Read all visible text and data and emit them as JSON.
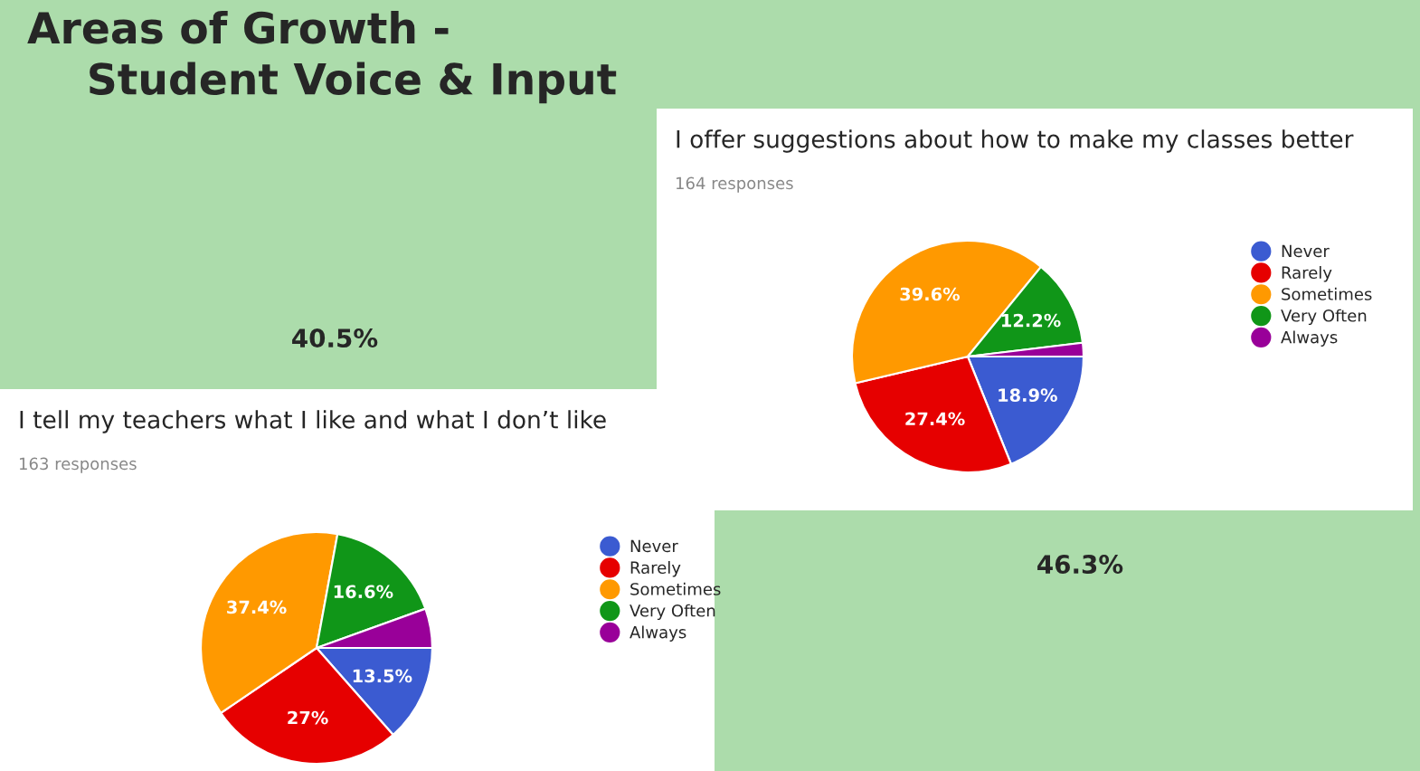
{
  "chart_data": [
    {
      "type": "other",
      "title": "Areas of Growth -\n    Student Voice & Input",
      "annotations": [
        "40.5%",
        "46.3%"
      ]
    },
    {
      "type": "pie",
      "title": "I offer suggestions about how to make my classes better",
      "subtitle": "164 responses",
      "categories": [
        "Never",
        "Rarely",
        "Sometimes",
        "Very Often",
        "Always"
      ],
      "values": [
        18.9,
        27.4,
        39.6,
        12.2,
        1.9
      ],
      "colors": [
        "#3b5bd1",
        "#e60000",
        "#ff9900",
        "#109618",
        "#990099"
      ],
      "value_labels": [
        "18.9%",
        "27.4%",
        "39.6%",
        "12.2%",
        null
      ],
      "legend": "right"
    },
    {
      "type": "pie",
      "title": "I tell my teachers what I like and what I don’t like",
      "subtitle": "163 responses",
      "categories": [
        "Never",
        "Rarely",
        "Sometimes",
        "Very Often",
        "Always"
      ],
      "values": [
        13.5,
        27,
        37.4,
        16.6,
        5.5
      ],
      "colors": [
        "#3b5bd1",
        "#e60000",
        "#ff9900",
        "#109618",
        "#990099"
      ],
      "value_labels": [
        "13.5%",
        "27%",
        "37.4%",
        "16.6%",
        null
      ],
      "legend": "right"
    }
  ]
}
